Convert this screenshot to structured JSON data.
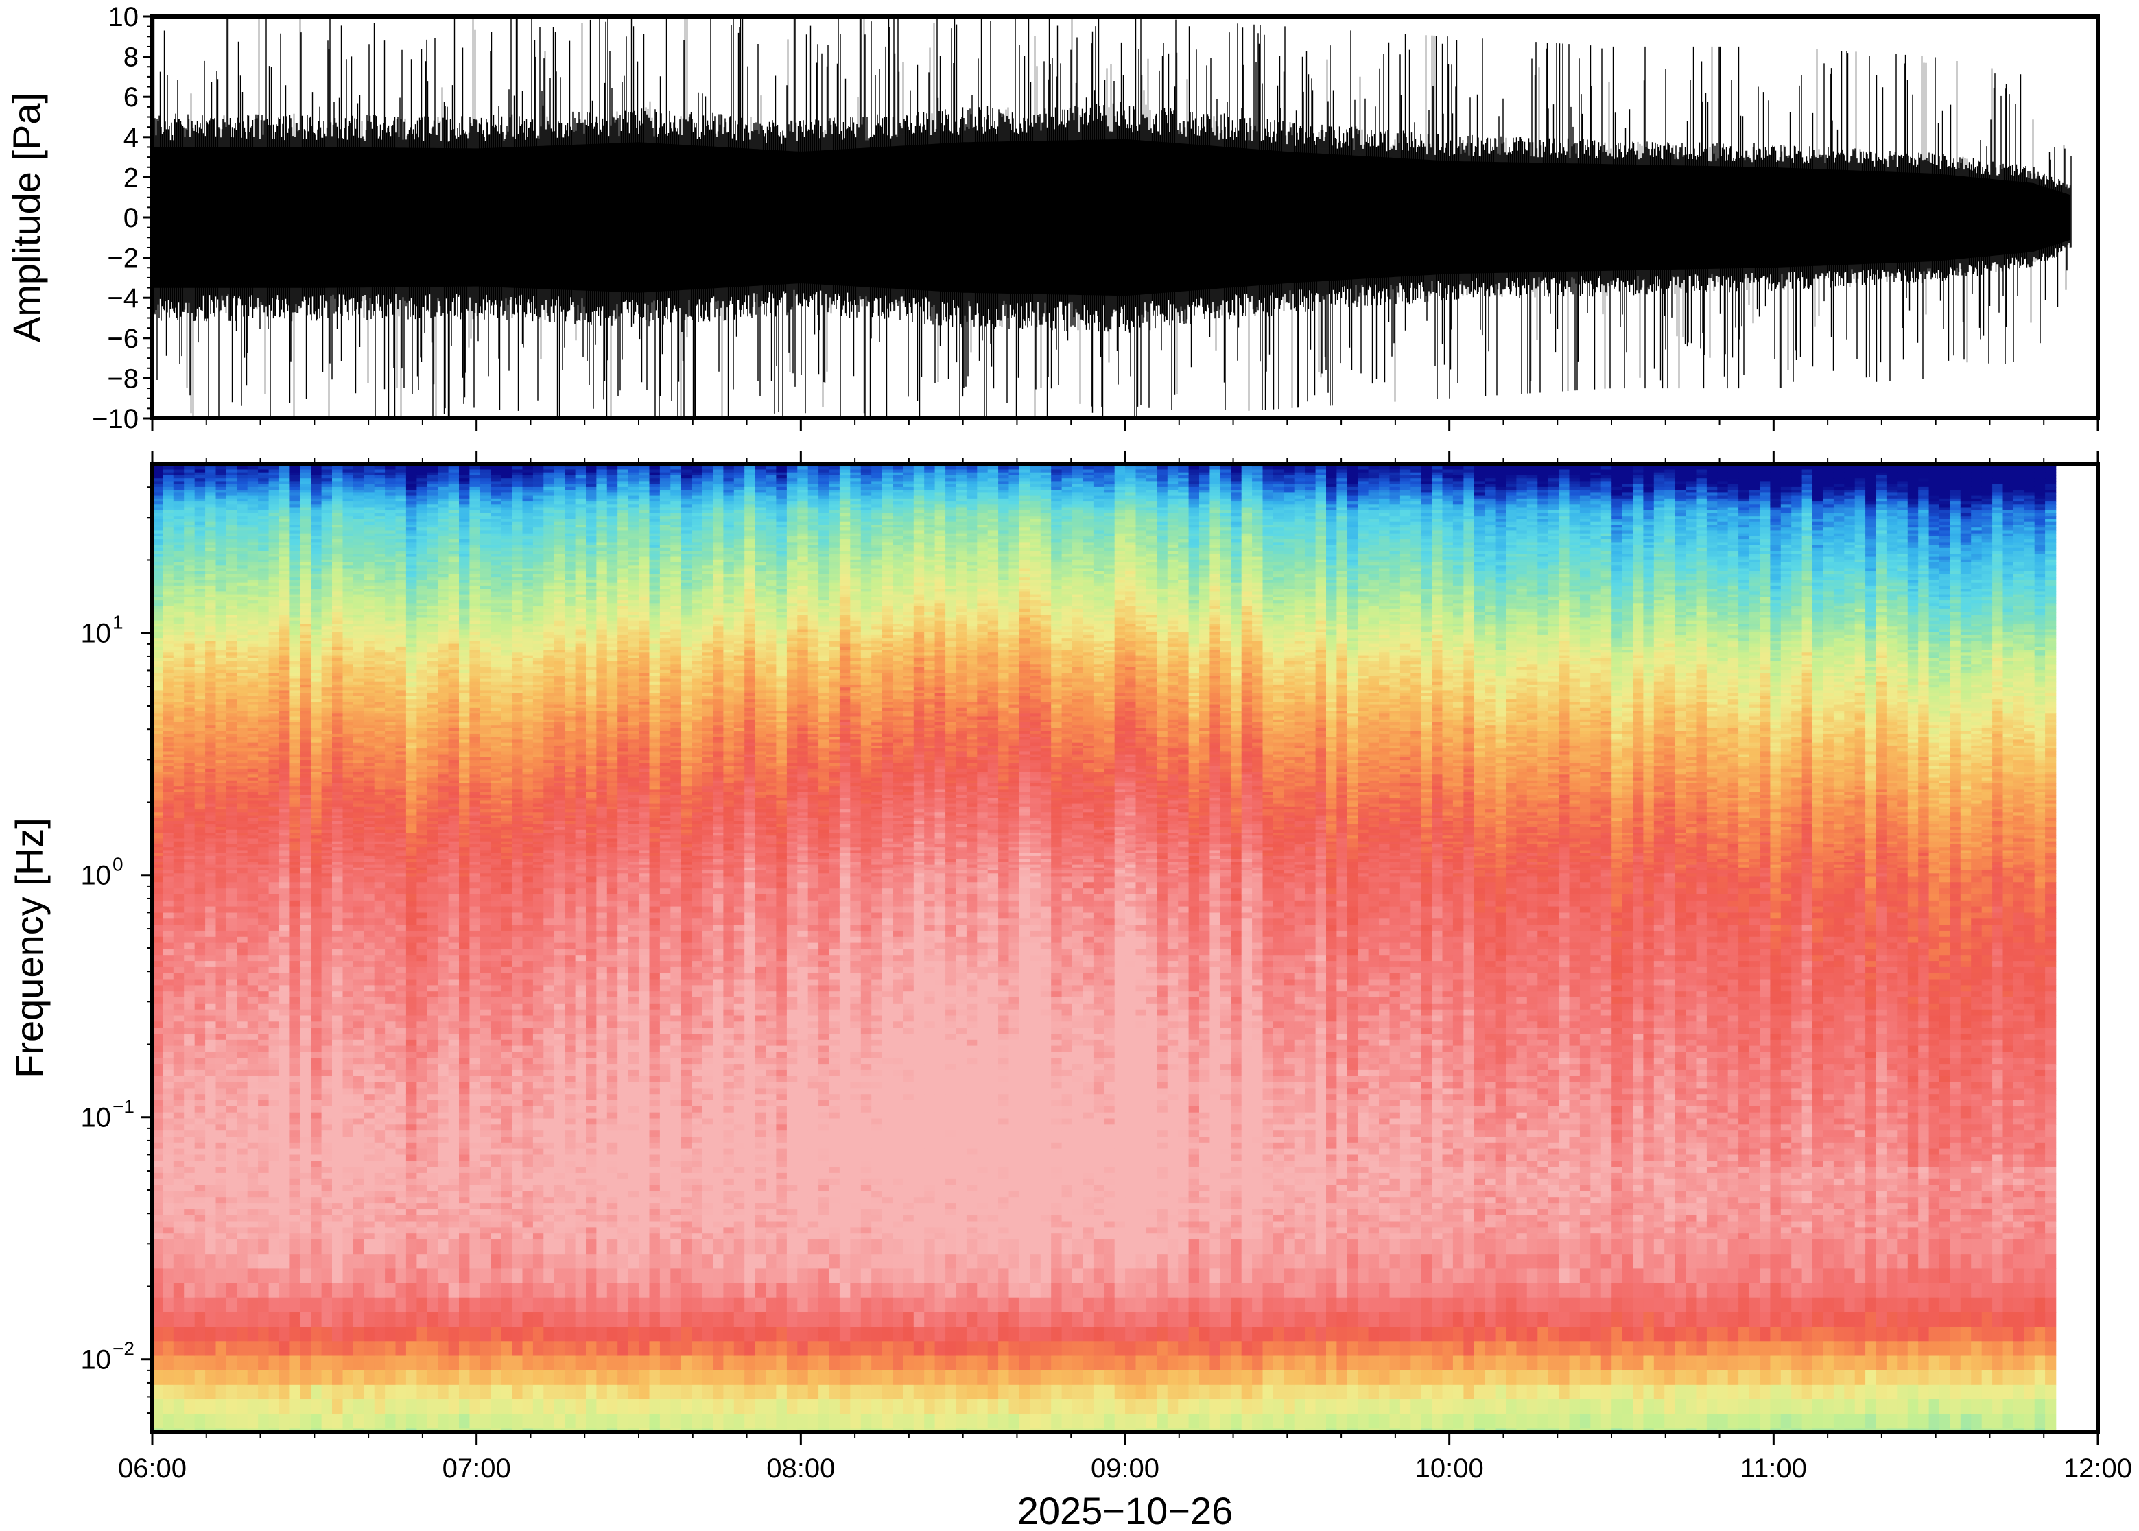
{
  "chart_data": [
    {
      "type": "line",
      "panel": "waveform",
      "ylabel": "Amplitude [Pa]",
      "ylim": [
        -10,
        10
      ],
      "yticks": [
        {
          "value": 10,
          "label": "10"
        },
        {
          "value": 8,
          "label": "8"
        },
        {
          "value": 6,
          "label": "6"
        },
        {
          "value": 4,
          "label": "4"
        },
        {
          "value": 2,
          "label": "2"
        },
        {
          "value": 0,
          "label": "0"
        },
        {
          "value": -2,
          "label": "−2"
        },
        {
          "value": -4,
          "label": "−4"
        },
        {
          "value": -6,
          "label": "−6"
        },
        {
          "value": -8,
          "label": "−8"
        },
        {
          "value": -10,
          "label": "−10"
        }
      ],
      "xlim_hours": [
        6,
        12
      ],
      "data_end_hour": 11.92,
      "line_color": "#000000",
      "envelope": {
        "hours": [
          6.0,
          6.5,
          7.0,
          7.5,
          8.0,
          8.5,
          9.0,
          9.5,
          10.0,
          10.5,
          11.0,
          11.5,
          11.8,
          11.92
        ],
        "typical": [
          4.5,
          4.5,
          4.4,
          4.8,
          4.2,
          4.8,
          5.0,
          4.2,
          3.6,
          3.4,
          3.2,
          2.8,
          2.2,
          1.4
        ],
        "peaks": [
          10,
          10,
          10,
          10,
          10,
          10,
          10,
          9.5,
          9,
          8.5,
          8.5,
          8,
          7,
          3
        ]
      }
    },
    {
      "type": "heatmap",
      "panel": "spectrogram",
      "ylabel": "Frequency [Hz]",
      "yscale": "log",
      "ylim": [
        0.005,
        50
      ],
      "yticks": [
        {
          "value": 10,
          "base": "10",
          "exp": "1"
        },
        {
          "value": 1,
          "base": "10",
          "exp": "0"
        },
        {
          "value": 0.1,
          "base": "10",
          "exp": "−1"
        },
        {
          "value": 0.01,
          "base": "10",
          "exp": "−2"
        }
      ],
      "xlim_hours": [
        6,
        12
      ],
      "xticks": [
        {
          "value": 6,
          "label": "06:00"
        },
        {
          "value": 7,
          "label": "07:00"
        },
        {
          "value": 8,
          "label": "08:00"
        },
        {
          "value": 9,
          "label": "09:00"
        },
        {
          "value": 10,
          "label": "10:00"
        },
        {
          "value": 11,
          "label": "11:00"
        },
        {
          "value": 12,
          "label": "12:00"
        }
      ],
      "xlabel": "2025−10−26",
      "data_end_hour": 11.87,
      "colormap": "rainbow",
      "colormap_stops": [
        "#0a0a8c",
        "#1a5ad8",
        "#36b4ec",
        "#5ad8e6",
        "#8ae2b4",
        "#c8f090",
        "#f0ec8c",
        "#f8c060",
        "#f89050",
        "#f05a50",
        "#f47878",
        "#f8b4b4"
      ],
      "level_profile": {
        "log10_freq": [
          -2.3,
          -2.15,
          -2.0,
          -1.85,
          -1.7,
          -1.5,
          -1.2,
          -0.9,
          -0.6,
          -0.3,
          0.0,
          0.3,
          0.6,
          0.9,
          1.1,
          1.3,
          1.5,
          1.6,
          1.7
        ],
        "level": [
          0.46,
          0.56,
          0.72,
          0.86,
          0.94,
          0.98,
          1.0,
          0.98,
          0.95,
          0.92,
          0.88,
          0.8,
          0.7,
          0.58,
          0.46,
          0.36,
          0.26,
          0.12,
          0.0
        ]
      },
      "time_modulation": {
        "hours": [
          6.0,
          7.0,
          8.0,
          8.5,
          9.0,
          9.5,
          10.0,
          11.0,
          11.5,
          11.87
        ],
        "offset": [
          0.0,
          0.0,
          0.03,
          0.06,
          0.04,
          0.0,
          -0.02,
          -0.05,
          -0.07,
          -0.08
        ]
      }
    }
  ]
}
